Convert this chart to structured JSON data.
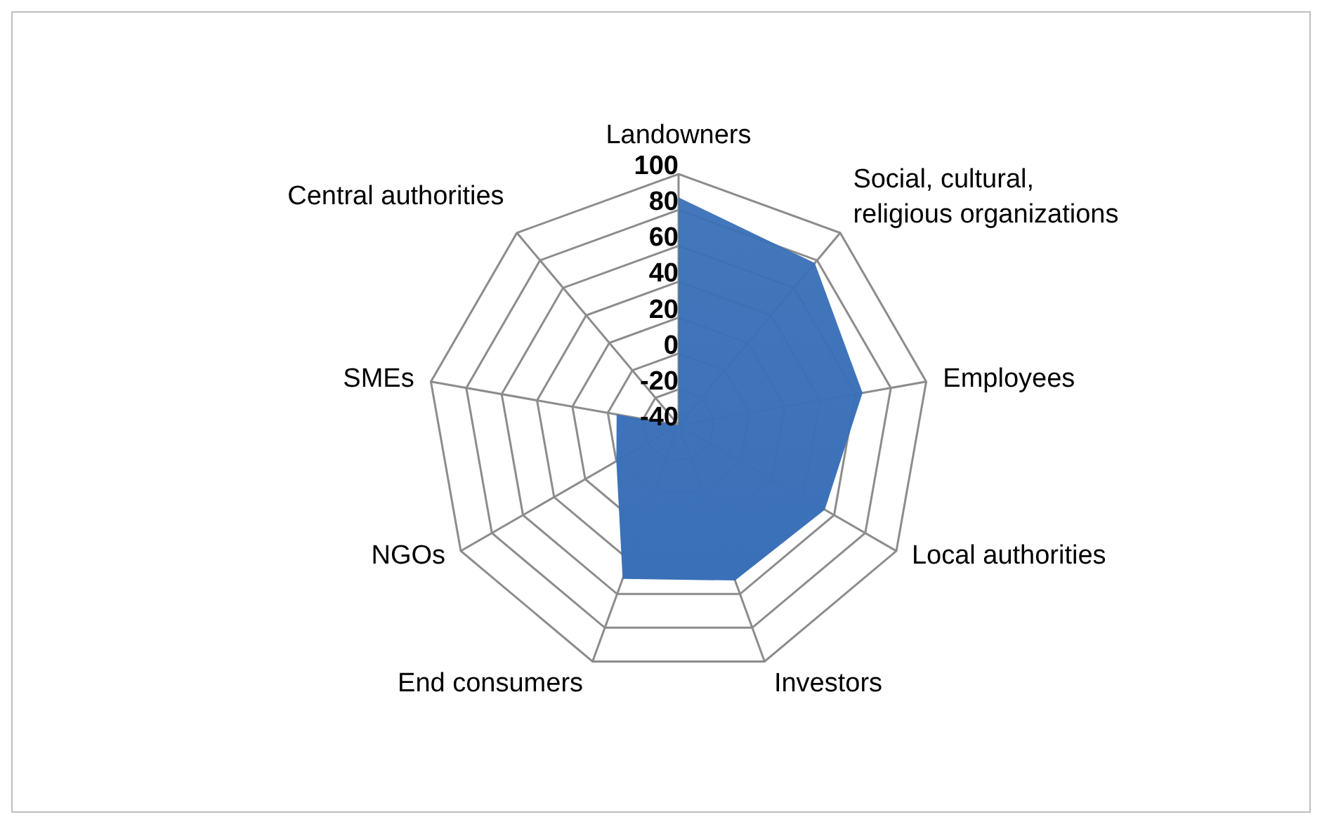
{
  "chart_data": {
    "type": "radar",
    "categories": [
      "Landowners",
      "Social, cultural, religious organizations",
      "Employees",
      "Local authorities",
      "Investors",
      "End consumers",
      "NGOs",
      "SMEs",
      "Central authorities"
    ],
    "series": [
      {
        "color": "#3a70b8",
        "values": [
          87,
          78,
          64,
          54,
          52,
          51,
          0,
          -5,
          -40
        ]
      }
    ],
    "ylim": [
      -40,
      100
    ],
    "yticks": [
      -40,
      -20,
      0,
      20,
      40,
      60,
      80,
      100
    ],
    "grid": true
  }
}
